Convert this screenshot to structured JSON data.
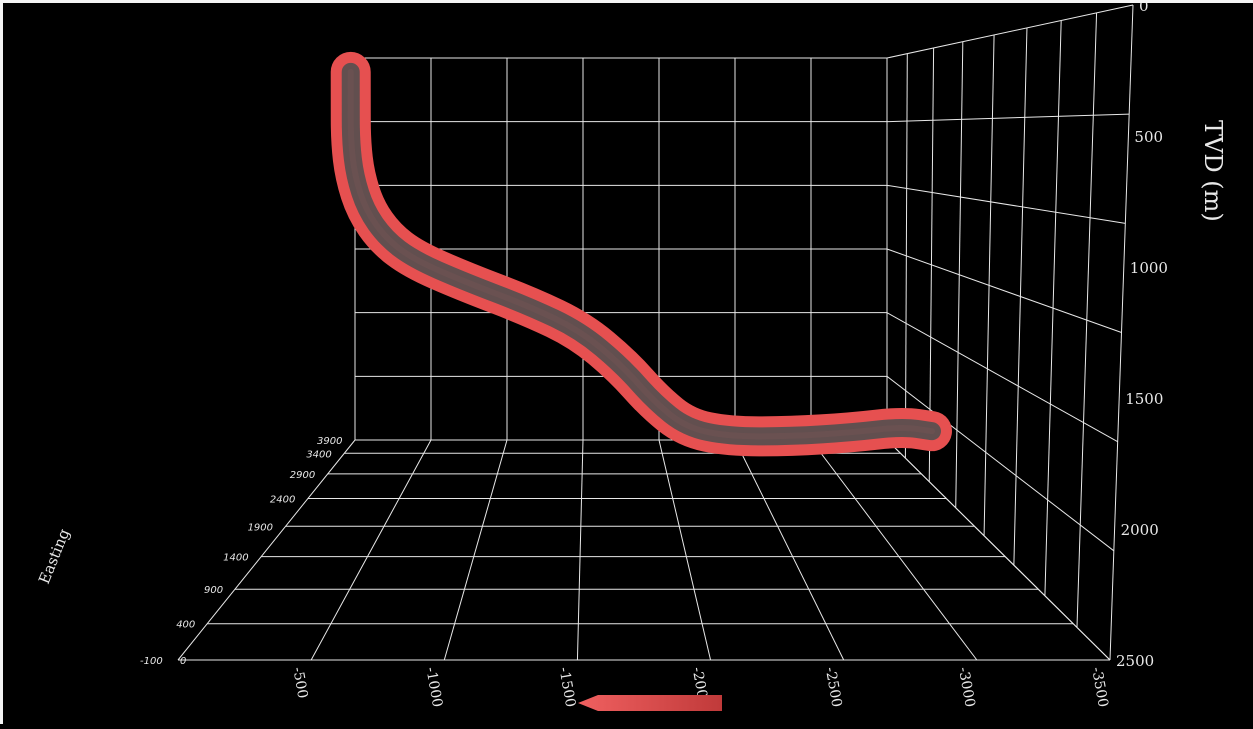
{
  "chart_data": {
    "type": "line",
    "title": "",
    "axes": {
      "x": {
        "label": "",
        "ticks": [
          "-500",
          "-1000",
          "-1500",
          "-2000",
          "-2500",
          "-3000",
          "-3500"
        ],
        "range": [
          0,
          -3500
        ]
      },
      "y": {
        "label": "Easting",
        "ticks": [
          "-100",
          "400",
          "900",
          "1400",
          "1900",
          "2400",
          "2900",
          "3400",
          "3900"
        ],
        "range": [
          -100,
          3900
        ]
      },
      "z": {
        "label": "TVD (m)",
        "ticks": [
          "0",
          "500",
          "1000",
          "1500",
          "2000",
          "2500"
        ],
        "range": [
          0,
          2500
        ],
        "reversed": true
      }
    },
    "grid": true,
    "series": [
      {
        "name": "",
        "color_start": "#e65050",
        "color_mid": "#4a4f4f",
        "points": [
          {
            "x": 200,
            "y": 3000,
            "tvd": -80
          },
          {
            "x": 200,
            "y": 3000,
            "tvd": 100
          },
          {
            "x": 205,
            "y": 2980,
            "tvd": 350
          },
          {
            "x": 240,
            "y": 2920,
            "tvd": 560
          },
          {
            "x": 320,
            "y": 2820,
            "tvd": 760
          },
          {
            "x": 450,
            "y": 2700,
            "tvd": 920
          },
          {
            "x": 620,
            "y": 2560,
            "tvd": 1030
          },
          {
            "x": 900,
            "y": 2350,
            "tvd": 1130
          },
          {
            "x": 1250,
            "y": 2100,
            "tvd": 1240
          },
          {
            "x": 1500,
            "y": 1950,
            "tvd": 1350
          },
          {
            "x": 1700,
            "y": 1850,
            "tvd": 1520
          },
          {
            "x": 1850,
            "y": 1800,
            "tvd": 1700
          },
          {
            "x": 2000,
            "y": 1780,
            "tvd": 1830
          },
          {
            "x": 2200,
            "y": 1800,
            "tvd": 1880
          },
          {
            "x": 2500,
            "y": 1850,
            "tvd": 1890
          },
          {
            "x": 2800,
            "y": 1900,
            "tvd": 1880
          },
          {
            "x": 3050,
            "y": 1950,
            "tvd": 1860
          },
          {
            "x": 3200,
            "y": 1980,
            "tvd": 1890
          }
        ]
      }
    ]
  },
  "colors": {
    "background": "#000000",
    "grid": "#e8e8e8",
    "text": "#e8e8e8",
    "arrow": "#e05050"
  }
}
